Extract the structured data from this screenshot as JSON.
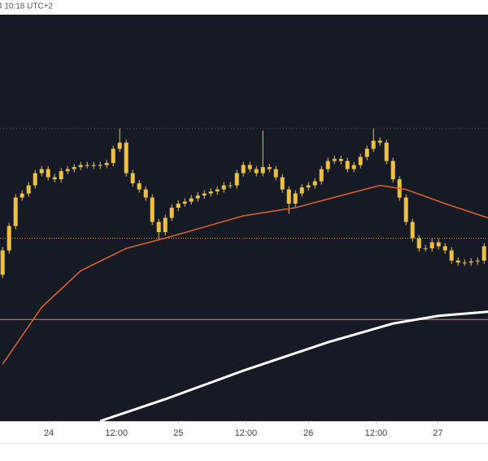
{
  "chart_data": {
    "type": "candlestick",
    "title": "4 10:18 UTC+2",
    "candle_color": "#f0c23a",
    "background": "#161a25",
    "ylim": [
      0,
      100
    ],
    "xlim": [
      -0.4,
      74.6
    ],
    "xticks": [
      {
        "value": 7.1,
        "label": "24"
      },
      {
        "value": 17.5,
        "label": "12:00"
      },
      {
        "value": 27,
        "label": "25"
      },
      {
        "value": 37.4,
        "label": "12:00"
      },
      {
        "value": 47,
        "label": "26"
      },
      {
        "value": 57.4,
        "label": "12:00"
      },
      {
        "value": 66.9,
        "label": "27"
      }
    ],
    "open": [
      36,
      42,
      48,
      55,
      56,
      58,
      61,
      62,
      60,
      59.5,
      61.5,
      62,
      62.5,
      63,
      63,
      62.8,
      63,
      63.5,
      67,
      68.5,
      61,
      58.5,
      57,
      55,
      49,
      46.5,
      50,
      52.5,
      53.5,
      54,
      54.8,
      55.5,
      56,
      56.5,
      57,
      58,
      58,
      61,
      63,
      62,
      61,
      62.5,
      62,
      60,
      57,
      53.5,
      56,
      57.5,
      58,
      59,
      62,
      64,
      64.5,
      64,
      62,
      63,
      65,
      67,
      69,
      68.5,
      64,
      59.5,
      55,
      49,
      45,
      42.5,
      42.5,
      44,
      43,
      42,
      39.5,
      39,
      39,
      39.3,
      39.5
    ],
    "high": [
      42.8,
      48.8,
      55.8,
      56.8,
      58.8,
      61.8,
      62.8,
      62.8,
      60.8,
      62.3,
      62.8,
      63.3,
      63.8,
      63.8,
      63.8,
      63.8,
      64.3,
      67.8,
      72,
      69.3,
      61.8,
      59.3,
      57.8,
      55.8,
      49.8,
      50.8,
      53.3,
      54.3,
      54.8,
      55.6,
      56.3,
      56.8,
      57.3,
      57.8,
      58.8,
      58.8,
      61.8,
      63.8,
      63.8,
      62.8,
      71.5,
      63.3,
      62.8,
      60.8,
      57.8,
      56.8,
      58.3,
      58.8,
      59.8,
      62.8,
      64.8,
      65.3,
      65.3,
      64.8,
      63.8,
      65.8,
      67.8,
      72,
      69.8,
      69.3,
      64.8,
      60.3,
      55.8,
      49.8,
      45.8,
      43.3,
      44.8,
      44.8,
      43.8,
      42.8,
      40.3,
      39.8,
      40.1,
      40.3,
      43.8
    ],
    "low": [
      35.2,
      41.2,
      47.2,
      54.2,
      55.2,
      57.2,
      60.2,
      59.2,
      58.7,
      58.7,
      60.7,
      61.2,
      61.7,
      62.2,
      62,
      62,
      62.2,
      62.7,
      66.2,
      60.2,
      57.7,
      56.2,
      54.2,
      48.2,
      44.5,
      45.7,
      49.2,
      51.7,
      52.7,
      53.2,
      54,
      54.7,
      55.2,
      55.7,
      56.2,
      57.2,
      57.2,
      60.2,
      61.2,
      60.2,
      60.2,
      61.2,
      59.2,
      56.2,
      51,
      52.7,
      55.2,
      56.7,
      57.2,
      58.2,
      61.2,
      63.2,
      63.2,
      61.2,
      61.2,
      62.2,
      64.2,
      66.2,
      67.7,
      63.2,
      58.7,
      54.2,
      48.2,
      44.2,
      41.7,
      41.7,
      41.7,
      42.2,
      41.2,
      38.7,
      38.2,
      38.2,
      38.2,
      38.5,
      38.7
    ],
    "close": [
      42,
      48,
      55,
      56,
      58,
      61,
      62,
      60,
      59.5,
      61.5,
      62,
      62.5,
      63,
      63,
      62.8,
      63,
      63.5,
      67,
      68.5,
      61,
      58.5,
      57,
      55,
      49,
      46.5,
      50,
      52.5,
      53.5,
      54,
      54.8,
      55.5,
      56,
      56.5,
      57,
      58,
      58,
      61,
      63,
      62,
      61,
      62.5,
      62,
      60,
      57,
      53.5,
      56,
      57.5,
      58,
      59,
      62,
      64,
      64.5,
      64,
      62,
      63,
      65,
      67,
      69,
      68.5,
      64,
      59.5,
      55,
      49,
      45,
      42.5,
      42.5,
      44,
      43,
      42,
      39.5,
      39,
      39,
      39.3,
      39.5,
      43
    ],
    "lines": [
      {
        "color": "#e0622a",
        "width": 1.5,
        "x": [
          0,
          6,
          12,
          19,
          25,
          37,
          45,
          52,
          58,
          62,
          68,
          74.6
        ],
        "values": [
          14,
          28,
          37,
          42.5,
          45,
          50.5,
          52.5,
          55.5,
          58,
          57,
          53.5,
          50
        ]
      },
      {
        "color": "#ffffff",
        "width": 3,
        "x": [
          15,
          25,
          37,
          50,
          60,
          67,
          74.6
        ],
        "values": [
          0,
          5.4,
          12.4,
          19.4,
          24,
          25.9,
          26.9
        ]
      }
    ],
    "levels": [
      {
        "value": 72,
        "color": "#4a5060",
        "dash": "1 3"
      },
      {
        "value": 45,
        "color": "#c9a227",
        "dash": "1 2"
      },
      {
        "value": 25,
        "color": "#b89090",
        "dash": "none"
      }
    ]
  }
}
